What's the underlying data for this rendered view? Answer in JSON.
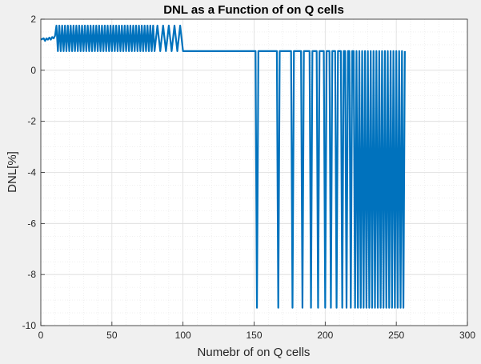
{
  "chart_data": {
    "type": "line",
    "title": "DNL as a Function of on Q cells",
    "xlabel": "Numebr of on Q cells",
    "ylabel": "DNL[%]",
    "xlim": [
      0,
      300
    ],
    "ylim": [
      -10,
      2
    ],
    "x_ticks": [
      "0",
      "50",
      "100",
      "150",
      "200",
      "250",
      "300"
    ],
    "y_ticks": [
      "2",
      "0",
      "-2",
      "-4",
      "-6",
      "-8",
      "-10"
    ],
    "grid": true,
    "minor_grid": true,
    "series": [
      {
        "color": "#0072bd",
        "description_segments": [
          {
            "x_range": [
              0,
              10
            ],
            "pattern": "near 1.2 with small ripple"
          },
          {
            "x_range": [
              10,
              100
            ],
            "pattern": "oscillating between 0.75 and 1.75"
          },
          {
            "x_range": [
              100,
              152
            ],
            "pattern": "flat at 0.75"
          },
          {
            "x_range": [
              152,
              256
            ],
            "pattern": "flat at 0.75 with drops to -9.3 at increasing frequency"
          }
        ],
        "points": [
          [
            0,
            1.2
          ],
          [
            2,
            1.25
          ],
          [
            3,
            1.15
          ],
          [
            4,
            1.25
          ],
          [
            5,
            1.2
          ],
          [
            6,
            1.28
          ],
          [
            7,
            1.2
          ],
          [
            8,
            1.3
          ],
          [
            9,
            1.25
          ],
          [
            10,
            1.35
          ],
          [
            11,
            1.75
          ],
          [
            12,
            0.75
          ],
          [
            13,
            1.75
          ],
          [
            14,
            0.75
          ],
          [
            15,
            1.75
          ],
          [
            16,
            0.75
          ],
          [
            17,
            1.75
          ],
          [
            18,
            0.75
          ],
          [
            19,
            1.75
          ],
          [
            20,
            0.75
          ],
          [
            21,
            1.75
          ],
          [
            22,
            0.75
          ],
          [
            23,
            1.75
          ],
          [
            24,
            0.75
          ],
          [
            25,
            1.75
          ],
          [
            26,
            0.75
          ],
          [
            27,
            1.75
          ],
          [
            28,
            0.75
          ],
          [
            29,
            1.75
          ],
          [
            30,
            0.75
          ],
          [
            31,
            1.75
          ],
          [
            32,
            0.75
          ],
          [
            33,
            1.75
          ],
          [
            34,
            0.75
          ],
          [
            35,
            1.75
          ],
          [
            36,
            0.75
          ],
          [
            37,
            1.75
          ],
          [
            38,
            0.75
          ],
          [
            39,
            1.75
          ],
          [
            40,
            0.75
          ],
          [
            41,
            1.75
          ],
          [
            42,
            0.75
          ],
          [
            43,
            1.75
          ],
          [
            44,
            0.75
          ],
          [
            45,
            1.75
          ],
          [
            46,
            0.75
          ],
          [
            47,
            1.75
          ],
          [
            48,
            0.75
          ],
          [
            49,
            1.75
          ],
          [
            50,
            0.75
          ],
          [
            51,
            1.75
          ],
          [
            52,
            0.75
          ],
          [
            53,
            1.75
          ],
          [
            54,
            0.75
          ],
          [
            55,
            1.75
          ],
          [
            56,
            0.75
          ],
          [
            57,
            1.75
          ],
          [
            58,
            0.75
          ],
          [
            59,
            1.75
          ],
          [
            60,
            0.75
          ],
          [
            61,
            1.75
          ],
          [
            62,
            0.75
          ],
          [
            63,
            1.75
          ],
          [
            64,
            0.75
          ],
          [
            65,
            1.75
          ],
          [
            66,
            0.75
          ],
          [
            67,
            1.75
          ],
          [
            68,
            0.75
          ],
          [
            69,
            1.75
          ],
          [
            70,
            0.75
          ],
          [
            71,
            1.75
          ],
          [
            72,
            0.75
          ],
          [
            73,
            1.75
          ],
          [
            74,
            0.75
          ],
          [
            75,
            1.75
          ],
          [
            76,
            0.75
          ],
          [
            77,
            1.75
          ],
          [
            78,
            0.75
          ],
          [
            79,
            1.75
          ],
          [
            80,
            0.75
          ],
          [
            82,
            1.75
          ],
          [
            84,
            0.75
          ],
          [
            86,
            1.75
          ],
          [
            88,
            0.75
          ],
          [
            90,
            1.75
          ],
          [
            92,
            0.75
          ],
          [
            94,
            1.75
          ],
          [
            96,
            0.75
          ],
          [
            98,
            1.75
          ],
          [
            100,
            0.75
          ],
          [
            151,
            0.75
          ],
          [
            152,
            -9.3
          ],
          [
            153,
            0.75
          ],
          [
            166,
            0.75
          ],
          [
            167,
            -9.3
          ],
          [
            168,
            0.75
          ],
          [
            176,
            0.75
          ],
          [
            177,
            -9.3
          ],
          [
            178,
            0.75
          ],
          [
            183,
            0.75
          ],
          [
            184,
            -9.3
          ],
          [
            185,
            0.75
          ],
          [
            189,
            0.75
          ],
          [
            190,
            -9.3
          ],
          [
            191,
            0.75
          ],
          [
            194,
            0.75
          ],
          [
            195,
            -9.3
          ],
          [
            196,
            0.75
          ],
          [
            199,
            0.75
          ],
          [
            200,
            -9.3
          ],
          [
            201,
            0.75
          ],
          [
            203,
            0.75
          ],
          [
            204,
            -9.3
          ],
          [
            205,
            0.75
          ],
          [
            207,
            0.75
          ],
          [
            208,
            -9.3
          ],
          [
            209,
            0.75
          ],
          [
            211,
            0.75
          ],
          [
            212,
            -9.3
          ],
          [
            213,
            0.75
          ],
          [
            214,
            0.75
          ],
          [
            215,
            -9.3
          ],
          [
            216,
            0.75
          ],
          [
            217,
            0.75
          ],
          [
            218,
            -9.3
          ],
          [
            219,
            0.75
          ],
          [
            220,
            0.75
          ],
          [
            221,
            -9.3
          ],
          [
            222,
            0.75
          ],
          [
            223,
            -9.3
          ],
          [
            224,
            0.75
          ],
          [
            225,
            -9.3
          ],
          [
            226,
            0.75
          ],
          [
            227,
            -9.3
          ],
          [
            228,
            0.75
          ],
          [
            229,
            -9.3
          ],
          [
            230,
            0.75
          ],
          [
            231,
            -9.3
          ],
          [
            232,
            0.75
          ],
          [
            233,
            -9.3
          ],
          [
            234,
            0.75
          ],
          [
            235,
            -9.3
          ],
          [
            236,
            0.75
          ],
          [
            237,
            -9.3
          ],
          [
            238,
            0.75
          ],
          [
            239,
            -9.3
          ],
          [
            240,
            0.75
          ],
          [
            241,
            -9.3
          ],
          [
            242,
            0.75
          ],
          [
            243,
            -9.3
          ],
          [
            244,
            0.75
          ],
          [
            245,
            -9.3
          ],
          [
            246,
            0.75
          ],
          [
            247,
            -9.3
          ],
          [
            248,
            0.75
          ],
          [
            249,
            -9.3
          ],
          [
            250,
            0.75
          ],
          [
            251,
            -9.3
          ],
          [
            252,
            0.75
          ],
          [
            253,
            -9.3
          ],
          [
            254,
            0.75
          ],
          [
            255,
            -9.3
          ],
          [
            256,
            0.75
          ]
        ]
      }
    ]
  }
}
